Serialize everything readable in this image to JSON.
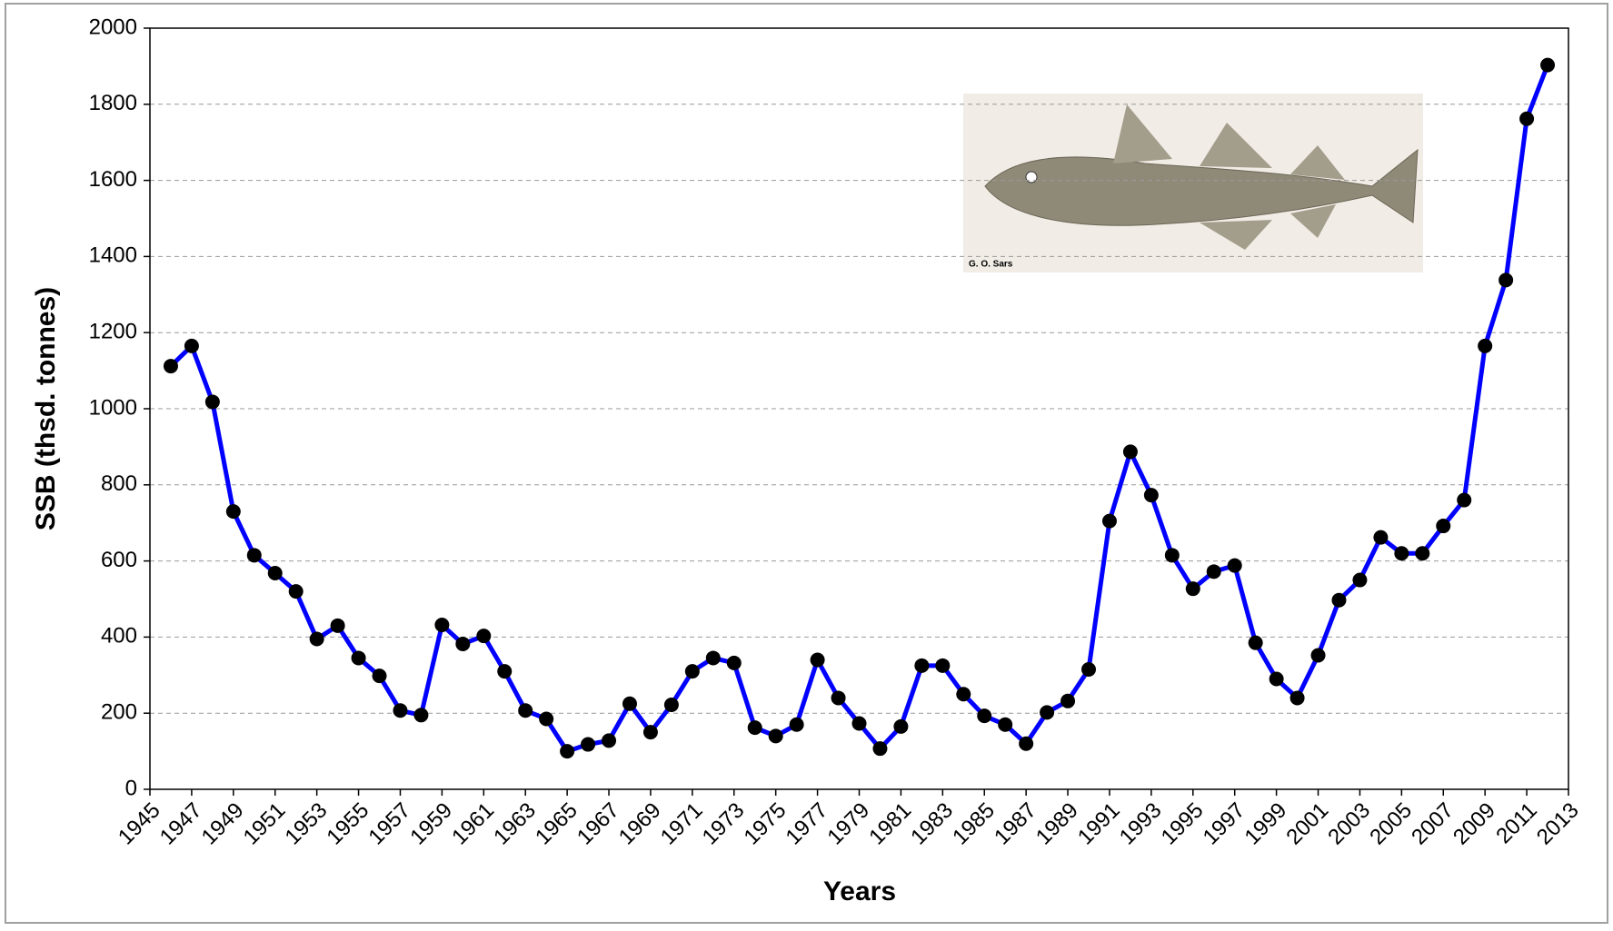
{
  "chart_data": {
    "type": "line",
    "x_label": "Years",
    "y_label": "SSB (thsd. tonnes)",
    "image_caption": "G. O. Sars",
    "x": [
      1946,
      1947,
      1948,
      1949,
      1950,
      1951,
      1952,
      1953,
      1954,
      1955,
      1956,
      1957,
      1958,
      1959,
      1960,
      1961,
      1962,
      1963,
      1964,
      1965,
      1966,
      1967,
      1968,
      1969,
      1970,
      1971,
      1972,
      1973,
      1974,
      1975,
      1976,
      1977,
      1978,
      1979,
      1980,
      1981,
      1982,
      1983,
      1984,
      1985,
      1986,
      1987,
      1988,
      1989,
      1990,
      1991,
      1992,
      1993,
      1994,
      1995,
      1996,
      1997,
      1998,
      1999,
      2000,
      2001,
      2002,
      2003,
      2004,
      2005,
      2006,
      2007,
      2008,
      2009,
      2010,
      2011,
      2012
    ],
    "values": [
      1112,
      1165,
      1018,
      730,
      615,
      568,
      520,
      395,
      430,
      345,
      298,
      207,
      195,
      432,
      382,
      403,
      310,
      207,
      185,
      100,
      118,
      128,
      225,
      150,
      222,
      310,
      345,
      332,
      162,
      140,
      170,
      340,
      240,
      173,
      107,
      165,
      325,
      325,
      250,
      193,
      170,
      120,
      202,
      232,
      315,
      705,
      887,
      773,
      615,
      527,
      572,
      588,
      385,
      290,
      240,
      352,
      497,
      550,
      662,
      620,
      620,
      692,
      760,
      1165,
      1338,
      1762,
      1903
    ],
    "color": "#0000ff",
    "marker_color": "#000000",
    "xlim": [
      1945,
      2013
    ],
    "xticks": [
      1945,
      1947,
      1949,
      1951,
      1953,
      1955,
      1957,
      1959,
      1961,
      1963,
      1965,
      1967,
      1969,
      1971,
      1973,
      1975,
      1977,
      1979,
      1981,
      1983,
      1985,
      1987,
      1989,
      1991,
      1993,
      1995,
      1997,
      1999,
      2001,
      2003,
      2005,
      2007,
      2009,
      2011,
      2013
    ],
    "ylim": [
      0,
      2000
    ],
    "yticks": [
      0,
      200,
      400,
      600,
      800,
      1000,
      1200,
      1400,
      1600,
      1800,
      2000
    ],
    "grid": true
  }
}
